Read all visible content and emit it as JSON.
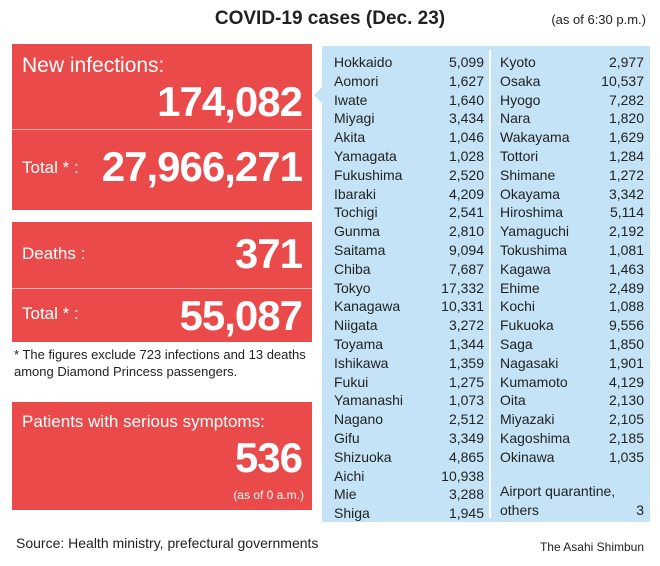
{
  "title": "COVID-19 cases (Dec. 23)",
  "as_of": "(as of 6:30 p.m.)",
  "new_infections": {
    "label": "New infections:",
    "value": "174,082",
    "total_label": "Total * :",
    "total_value": "27,966,271"
  },
  "deaths": {
    "label": "Deaths :",
    "value": "371",
    "total_label": "Total * :",
    "total_value": "55,087"
  },
  "footnote": "* The figures exclude 723 infections and 13 deaths among Diamond Princess passengers.",
  "serious": {
    "label": "Patients with serious symptoms:",
    "value": "536",
    "as_of": "(as of 0 a.m.)"
  },
  "prefectures_left": [
    [
      "Hokkaido",
      "5,099"
    ],
    [
      "Aomori",
      "1,627"
    ],
    [
      "Iwate",
      "1,640"
    ],
    [
      "Miyagi",
      "3,434"
    ],
    [
      "Akita",
      "1,046"
    ],
    [
      "Yamagata",
      "1,028"
    ],
    [
      "Fukushima",
      "2,520"
    ],
    [
      "Ibaraki",
      "4,209"
    ],
    [
      "Tochigi",
      "2,541"
    ],
    [
      "Gunma",
      "2,810"
    ],
    [
      "Saitama",
      "9,094"
    ],
    [
      "Chiba",
      "7,687"
    ],
    [
      "Tokyo",
      "17,332"
    ],
    [
      "Kanagawa",
      "10,331"
    ],
    [
      "Niigata",
      "3,272"
    ],
    [
      "Toyama",
      "1,344"
    ],
    [
      "Ishikawa",
      "1,359"
    ],
    [
      "Fukui",
      "1,275"
    ],
    [
      "Yamanashi",
      "1,073"
    ],
    [
      "Nagano",
      "2,512"
    ],
    [
      "Gifu",
      "3,349"
    ],
    [
      "Shizuoka",
      "4,865"
    ],
    [
      "Aichi",
      "10,938"
    ],
    [
      "Mie",
      "3,288"
    ],
    [
      "Shiga",
      "1,945"
    ]
  ],
  "prefectures_right": [
    [
      "Kyoto",
      "2,977"
    ],
    [
      "Osaka",
      "10,537"
    ],
    [
      "Hyogo",
      "7,282"
    ],
    [
      "Nara",
      "1,820"
    ],
    [
      "Wakayama",
      "1,629"
    ],
    [
      "Tottori",
      "1,284"
    ],
    [
      "Shimane",
      "1,272"
    ],
    [
      "Okayama",
      "3,342"
    ],
    [
      "Hiroshima",
      "5,114"
    ],
    [
      "Yamaguchi",
      "2,192"
    ],
    [
      "Tokushima",
      "1,081"
    ],
    [
      "Kagawa",
      "1,463"
    ],
    [
      "Ehime",
      "2,489"
    ],
    [
      "Kochi",
      "1,088"
    ],
    [
      "Fukuoka",
      "9,556"
    ],
    [
      "Saga",
      "1,850"
    ],
    [
      "Nagasaki",
      "1,901"
    ],
    [
      "Kumamoto",
      "4,129"
    ],
    [
      "Oita",
      "2,130"
    ],
    [
      "Miyazaki",
      "2,105"
    ],
    [
      "Kagoshima",
      "2,185"
    ],
    [
      "Okinawa",
      "1,035"
    ]
  ],
  "airport": {
    "label_line1": "Airport quarantine,",
    "label_line2": "others",
    "value": "3"
  },
  "source": "Source: Health ministry, prefectural governments",
  "credit": "The Asahi Shimbun",
  "colors": {
    "red": "#ea4a49",
    "blue": "#c4e3f6"
  }
}
